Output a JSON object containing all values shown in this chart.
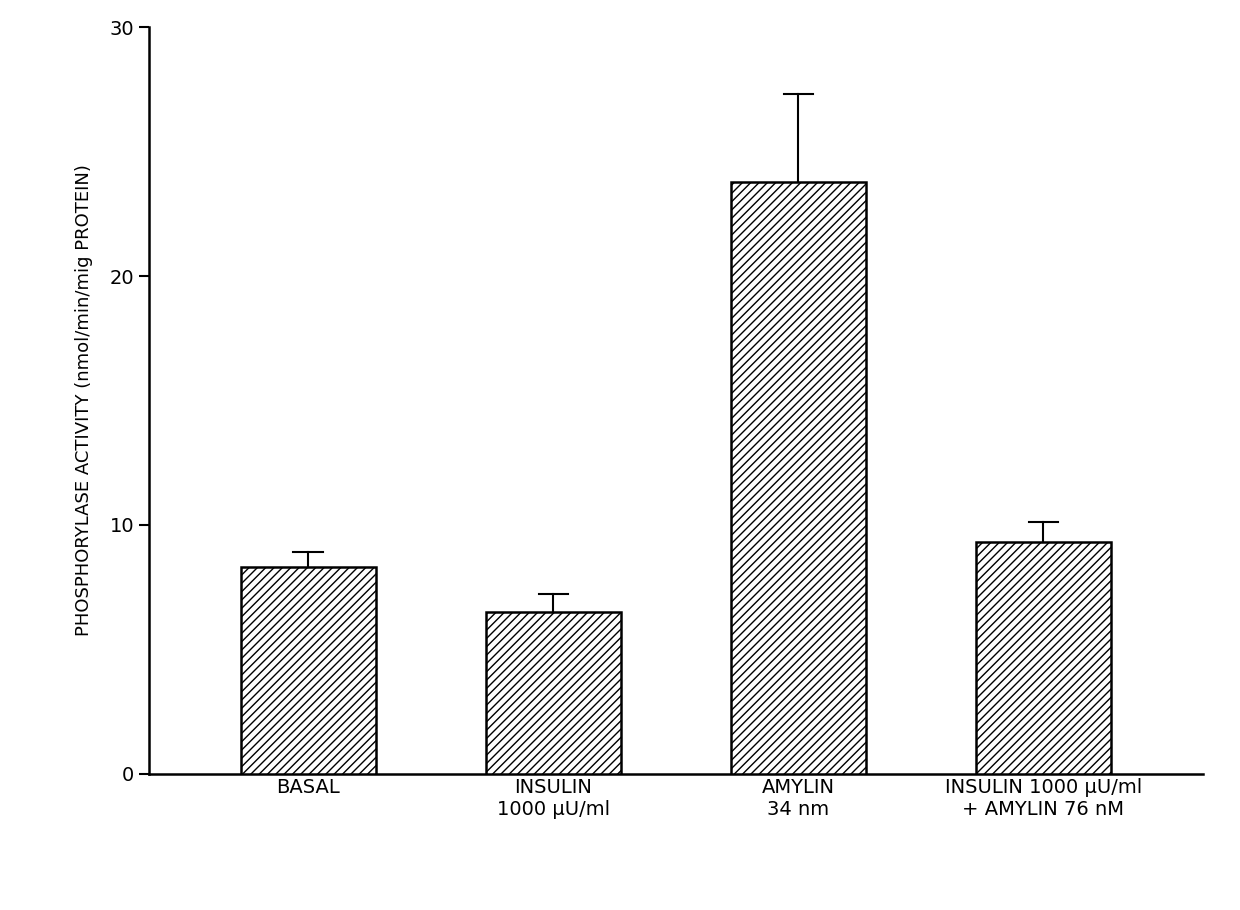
{
  "categories": [
    "BASAL",
    "INSULIN\n1000 μU/ml",
    "AMYLIN\n34 nm",
    "INSULIN 1000 μU/ml\n+ AMYLIN 76 nM"
  ],
  "values": [
    8.3,
    6.5,
    23.8,
    9.3
  ],
  "errors": [
    0.6,
    0.7,
    3.5,
    0.8
  ],
  "ylabel": "PHOSPHORYLASE ACTIVITY (nmol/min/mig PROTEIN)",
  "ylim": [
    0,
    30
  ],
  "yticks": [
    0,
    10,
    20,
    30
  ],
  "bar_width": 0.55,
  "hatch_pattern": "////",
  "bar_color": "white",
  "bar_edgecolor": "black",
  "background_color": "white",
  "tick_fontsize": 14,
  "label_fontsize": 13,
  "ylabel_fontsize": 13,
  "x_positions": [
    1,
    2,
    3,
    4
  ]
}
